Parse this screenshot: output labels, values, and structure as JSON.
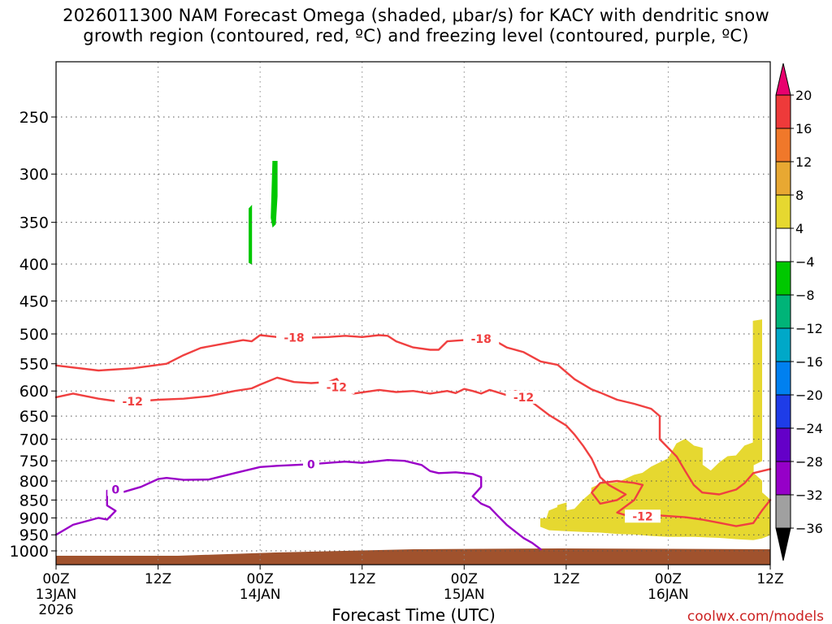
{
  "chart_data": {
    "type": "heatmap",
    "title_line1": "2026011300 NAM Forecast Omega (shaded, μbar/s) for KACY with dendritic snow",
    "title_line2": "growth region (contoured, red, ºC) and freezing level (contoured, purple, ºC)",
    "xlabel": "Forecast Time (UTC)",
    "ylabel": "",
    "credit": "coolwx.com/models",
    "x_range_hours": [
      0,
      84
    ],
    "y_axis": {
      "type": "pressure",
      "units": "hPa",
      "ticks": [
        250,
        300,
        350,
        400,
        450,
        500,
        550,
        600,
        650,
        700,
        750,
        800,
        850,
        900,
        950,
        1000
      ]
    },
    "x_ticks": [
      {
        "hour": 0,
        "label": "00Z",
        "date": "13JAN",
        "year": "2026"
      },
      {
        "hour": 12,
        "label": "12Z",
        "date": "",
        "year": ""
      },
      {
        "hour": 24,
        "label": "00Z",
        "date": "14JAN",
        "year": ""
      },
      {
        "hour": 36,
        "label": "12Z",
        "date": "",
        "year": ""
      },
      {
        "hour": 48,
        "label": "00Z",
        "date": "15JAN",
        "year": ""
      },
      {
        "hour": 60,
        "label": "12Z",
        "date": "",
        "year": ""
      },
      {
        "hour": 72,
        "label": "00Z",
        "date": "16JAN",
        "year": ""
      },
      {
        "hour": 84,
        "label": "12Z",
        "date": "",
        "year": ""
      }
    ],
    "colorbar": {
      "labels": [
        20,
        16,
        12,
        8,
        4,
        -4,
        -8,
        -12,
        -16,
        -20,
        -24,
        -28,
        -32,
        -36
      ],
      "colors": [
        "#e8006e",
        "#ee3a3a",
        "#f0782a",
        "#e8a832",
        "#e6d830",
        "#ffffff",
        "#00c800",
        "#00b478",
        "#00a8c8",
        "#0080f0",
        "#1e3ce8",
        "#6400c8",
        "#9600c8",
        "#a0a0a0",
        "#000000"
      ]
    },
    "contours": {
      "minus18": {
        "label": "-18",
        "color": "#f04040",
        "points": [
          [
            0,
            553
          ],
          [
            5,
            562
          ],
          [
            9,
            558
          ],
          [
            13,
            550
          ],
          [
            15,
            535
          ],
          [
            17,
            523
          ],
          [
            20,
            515
          ],
          [
            22,
            510
          ],
          [
            23,
            512
          ],
          [
            24,
            502
          ],
          [
            26,
            505
          ],
          [
            28,
            508
          ],
          [
            30,
            506
          ],
          [
            32,
            505
          ],
          [
            34,
            503
          ],
          [
            36,
            505
          ],
          [
            38,
            502
          ],
          [
            39,
            503
          ],
          [
            40,
            512
          ],
          [
            42,
            522
          ],
          [
            44,
            526
          ],
          [
            45,
            526
          ],
          [
            46,
            512
          ],
          [
            48,
            510
          ],
          [
            50,
            507
          ],
          [
            51,
            507
          ],
          [
            52,
            514
          ],
          [
            53,
            522
          ],
          [
            55,
            530
          ],
          [
            57,
            546
          ],
          [
            59,
            552
          ],
          [
            61,
            578
          ],
          [
            63,
            597
          ],
          [
            64,
            603
          ],
          [
            66,
            617
          ],
          [
            68,
            625
          ],
          [
            70,
            635
          ],
          [
            71,
            650
          ],
          [
            71,
            700
          ],
          [
            73,
            740
          ],
          [
            74,
            775
          ],
          [
            75,
            810
          ],
          [
            76,
            830
          ],
          [
            78,
            835
          ],
          [
            80,
            822
          ],
          [
            81,
            805
          ],
          [
            82,
            780
          ],
          [
            83,
            775
          ],
          [
            84,
            770
          ]
        ]
      },
      "minus12": {
        "label": "-12",
        "color": "#f04040",
        "points": [
          [
            0,
            612
          ],
          [
            2,
            605
          ],
          [
            5,
            615
          ],
          [
            8,
            622
          ],
          [
            12,
            617
          ],
          [
            15,
            615
          ],
          [
            18,
            610
          ],
          [
            21,
            600
          ],
          [
            23,
            595
          ],
          [
            24,
            588
          ],
          [
            26,
            575
          ],
          [
            28,
            583
          ],
          [
            30,
            585
          ],
          [
            32,
            583
          ],
          [
            33,
            577
          ],
          [
            34,
            600
          ],
          [
            35,
            605
          ],
          [
            38,
            598
          ],
          [
            40,
            602
          ],
          [
            42,
            600
          ],
          [
            44,
            605
          ],
          [
            46,
            600
          ],
          [
            47,
            604
          ],
          [
            48,
            596
          ],
          [
            49,
            600
          ],
          [
            50,
            605
          ],
          [
            51,
            598
          ],
          [
            53,
            608
          ],
          [
            54,
            600
          ],
          [
            55,
            605
          ],
          [
            56,
            622
          ],
          [
            58,
            648
          ],
          [
            60,
            670
          ],
          [
            61,
            690
          ],
          [
            62,
            715
          ],
          [
            63,
            745
          ],
          [
            64,
            790
          ],
          [
            65,
            810
          ],
          [
            67,
            835
          ],
          [
            66,
            850
          ],
          [
            64,
            860
          ],
          [
            63,
            830
          ],
          [
            64,
            805
          ],
          [
            66,
            800
          ],
          [
            68,
            805
          ],
          [
            69,
            810
          ],
          [
            68,
            850
          ],
          [
            66,
            885
          ],
          [
            68,
            900
          ],
          [
            71,
            893
          ],
          [
            74,
            898
          ],
          [
            76,
            905
          ],
          [
            78,
            914
          ],
          [
            80,
            924
          ],
          [
            82,
            915
          ],
          [
            83,
            880
          ],
          [
            84,
            850
          ]
        ]
      },
      "zero": {
        "label": "0",
        "color": "#9a00c8",
        "points": [
          [
            0,
            950
          ],
          [
            2,
            920
          ],
          [
            5,
            900
          ],
          [
            6,
            905
          ],
          [
            7,
            880
          ],
          [
            6,
            865
          ],
          [
            6,
            845
          ],
          [
            6,
            825
          ],
          [
            8,
            828
          ],
          [
            10,
            815
          ],
          [
            12,
            795
          ],
          [
            13,
            792
          ],
          [
            15,
            797
          ],
          [
            18,
            796
          ],
          [
            21,
            780
          ],
          [
            24,
            765
          ],
          [
            26,
            762
          ],
          [
            28,
            760
          ],
          [
            30,
            758
          ],
          [
            32,
            755
          ],
          [
            34,
            752
          ],
          [
            36,
            755
          ],
          [
            39,
            748
          ],
          [
            41,
            750
          ],
          [
            43,
            760
          ],
          [
            44,
            775
          ],
          [
            45,
            780
          ],
          [
            47,
            778
          ],
          [
            49,
            782
          ],
          [
            50,
            790
          ],
          [
            50,
            815
          ],
          [
            49,
            840
          ],
          [
            50,
            860
          ],
          [
            51,
            870
          ],
          [
            52,
            895
          ],
          [
            53,
            920
          ],
          [
            54,
            940
          ],
          [
            55,
            960
          ],
          [
            56,
            975
          ],
          [
            57,
            995
          ]
        ]
      },
      "labels": [
        {
          "text": "-18",
          "hour": 28,
          "p": 506
        },
        {
          "text": "-18",
          "hour": 50,
          "p": 508
        },
        {
          "text": "-12",
          "hour": 33,
          "p": 593
        },
        {
          "text": "-12",
          "hour": 55,
          "p": 612
        },
        {
          "text": "-12",
          "hour": 9,
          "p": 620
        },
        {
          "text": "-12",
          "hour": 69,
          "p": 895
        },
        {
          "text": "0",
          "hour": 30,
          "p": 758
        },
        {
          "text": "0",
          "hour": 7,
          "p": 822
        }
      ]
    },
    "shaded_regions": [
      {
        "value_range": "-8 to -4",
        "color": "#00c800",
        "points": [
          [
            22.7,
            335
          ],
          [
            23,
            332
          ],
          [
            23,
            400
          ],
          [
            22.7,
            398
          ]
        ]
      },
      {
        "value_range": "-8 to -4",
        "color": "#00c800",
        "points": [
          [
            25.5,
            288
          ],
          [
            26,
            288
          ],
          [
            26,
            322
          ],
          [
            25.8,
            352
          ],
          [
            25.5,
            355
          ],
          [
            25.3,
            345
          ]
        ]
      },
      {
        "value_range": "4 to 8",
        "color": "#e6d830",
        "points": [
          [
            57,
            925
          ],
          [
            57,
            902
          ],
          [
            57.7,
            902
          ],
          [
            58,
            880
          ],
          [
            59,
            870
          ],
          [
            59,
            865
          ],
          [
            60,
            858
          ],
          [
            60,
            880
          ],
          [
            61,
            875
          ],
          [
            62,
            850
          ],
          [
            63,
            830
          ],
          [
            63,
            818
          ],
          [
            64,
            808
          ],
          [
            66,
            805
          ],
          [
            67,
            795
          ],
          [
            68,
            785
          ],
          [
            69,
            780
          ],
          [
            70,
            765
          ],
          [
            72,
            745
          ],
          [
            73,
            710
          ],
          [
            74,
            700
          ],
          [
            75,
            715
          ],
          [
            76,
            720
          ],
          [
            76,
            760
          ],
          [
            77,
            775
          ],
          [
            78,
            755
          ],
          [
            79,
            740
          ],
          [
            80,
            738
          ],
          [
            81,
            715
          ],
          [
            82,
            708
          ],
          [
            82,
            480
          ],
          [
            83,
            478
          ],
          [
            83,
            750
          ],
          [
            82,
            760
          ],
          [
            82,
            780
          ],
          [
            83,
            800
          ],
          [
            83,
            830
          ],
          [
            84,
            850
          ],
          [
            84,
            950
          ],
          [
            83,
            960
          ],
          [
            82,
            965
          ],
          [
            80,
            962
          ],
          [
            78,
            958
          ],
          [
            75,
            955
          ],
          [
            72,
            955
          ],
          [
            70,
            952
          ],
          [
            68,
            948
          ],
          [
            66,
            946
          ],
          [
            64,
            942
          ],
          [
            62,
            940
          ],
          [
            60,
            938
          ],
          [
            58,
            935
          ]
        ]
      }
    ]
  }
}
